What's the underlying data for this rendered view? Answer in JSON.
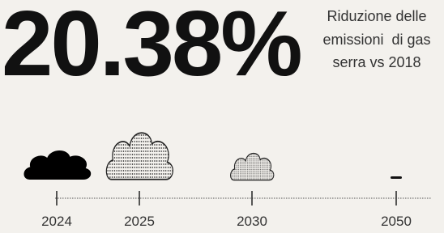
{
  "headline": {
    "value": "20.38%",
    "description": "Riduzione delle emissioni  di gas serra vs 2018"
  },
  "timeline": {
    "years": [
      "2024",
      "2025",
      "2030",
      "2050"
    ]
  }
}
